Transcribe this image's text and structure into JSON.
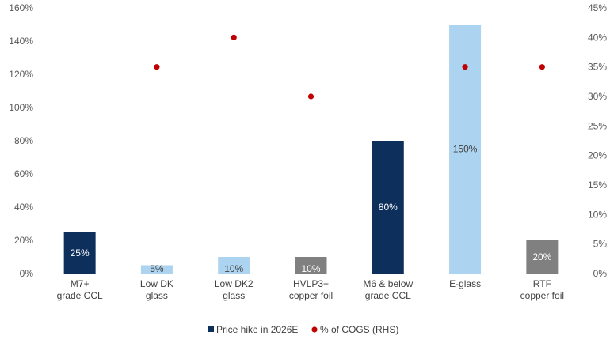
{
  "chart_data": {
    "type": "bar",
    "categories": [
      [
        "M7+",
        "grade CCL"
      ],
      [
        "Low DK",
        "glass"
      ],
      [
        "Low DK2",
        "glass"
      ],
      [
        "HVLP3+",
        "copper foil"
      ],
      [
        "M6 & below",
        "grade CCL"
      ],
      [
        "E-glass"
      ],
      [
        "RTF",
        "copper foil"
      ]
    ],
    "series": [
      {
        "name": "Price hike in 2026E",
        "kind": "bar",
        "axis": "left",
        "values": [
          25,
          5,
          10,
          10,
          80,
          150,
          20
        ],
        "labels": [
          "25%",
          "5%",
          "10%",
          "10%",
          "80%",
          "150%",
          "20%"
        ],
        "colors": [
          "#0d2f5c",
          "#acd3ef",
          "#acd3ef",
          "#808080",
          "#0d2f5c",
          "#acd3ef",
          "#808080"
        ],
        "label_colors": [
          "#ffffff",
          "#404040",
          "#404040",
          "#ffffff",
          "#ffffff",
          "#404040",
          "#ffffff"
        ]
      },
      {
        "name": "% of COGS (RHS)",
        "kind": "scatter",
        "axis": "right",
        "values": [
          null,
          35,
          40,
          30,
          null,
          35,
          35
        ],
        "color": "#c00000"
      }
    ],
    "y_left": {
      "min": 0,
      "max": 160,
      "step": 20,
      "ticks": [
        "0%",
        "20%",
        "40%",
        "60%",
        "80%",
        "100%",
        "120%",
        "140%",
        "160%"
      ]
    },
    "y_right": {
      "min": 0,
      "max": 45,
      "step": 5,
      "ticks": [
        "0%",
        "5%",
        "10%",
        "15%",
        "20%",
        "25%",
        "30%",
        "35%",
        "40%",
        "45%"
      ]
    },
    "grid": false,
    "legend_position": "bottom",
    "colors": {
      "dark": "#0d2f5c",
      "light": "#acd3ef",
      "gray": "#808080",
      "dot": "#c00000"
    }
  }
}
